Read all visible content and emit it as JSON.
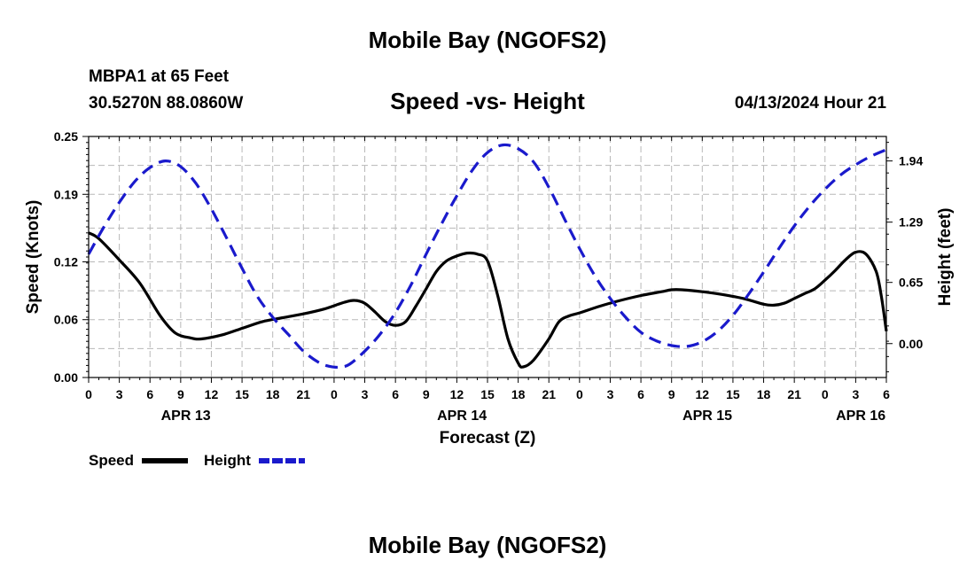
{
  "header": {
    "title": "Mobile Bay (NGOFS2)",
    "station": "MBPA1 at 65 Feet",
    "coords": "30.5270N  88.0860W",
    "subtitle": "Speed -vs- Height",
    "datetime": "04/13/2024 Hour 21"
  },
  "footer": {
    "title": "Mobile Bay (NGOFS2)"
  },
  "colors": {
    "speed": "#000000",
    "height": "#1a1acc",
    "grid": "#b8b8b8"
  },
  "chart_data": {
    "type": "line",
    "xlabel": "Forecast (Z)",
    "ylabel_left": "Speed (Knots)",
    "ylabel_right": "Height (feet)",
    "x_unit": "hours since 04/13 00Z",
    "xlim": [
      0,
      78
    ],
    "ylim_left": [
      0,
      0.25
    ],
    "ylim_right": [
      -0.36,
      2.2
    ],
    "y_ticks_left": [
      0.0,
      0.06,
      0.12,
      0.19,
      0.25
    ],
    "y_tick_labels_left": [
      "0.00",
      "0.06",
      "0.12",
      "0.19",
      "0.25"
    ],
    "y_ticks_right": [
      0.0,
      0.65,
      1.29,
      1.94
    ],
    "y_tick_labels_right": [
      "0.00",
      "0.65",
      "1.29",
      "1.94"
    ],
    "x_ticks": [
      0,
      3,
      6,
      9,
      12,
      15,
      18,
      21,
      24,
      27,
      30,
      33,
      36,
      39,
      42,
      45,
      48,
      51,
      54,
      57,
      60,
      63,
      66,
      69,
      72,
      75,
      78
    ],
    "x_tick_labels": [
      "0",
      "3",
      "6",
      "9",
      "12",
      "15",
      "18",
      "21",
      "0",
      "3",
      "6",
      "9",
      "12",
      "15",
      "18",
      "21",
      "0",
      "3",
      "6",
      "9",
      "12",
      "15",
      "18",
      "21",
      "0",
      "3",
      "6"
    ],
    "day_labels": [
      {
        "x": 9.5,
        "label": "APR 13"
      },
      {
        "x": 36.5,
        "label": "APR 14"
      },
      {
        "x": 60.5,
        "label": "APR 15"
      },
      {
        "x": 75.5,
        "label": "APR 16"
      }
    ],
    "grid": true,
    "legend": [
      {
        "name": "Speed",
        "style": "solid"
      },
      {
        "name": "Height",
        "style": "dashed"
      }
    ],
    "series": [
      {
        "name": "Speed",
        "axis": "left",
        "style": "solid",
        "points": [
          [
            0,
            0.15
          ],
          [
            1,
            0.144
          ],
          [
            3,
            0.122
          ],
          [
            5,
            0.098
          ],
          [
            7,
            0.064
          ],
          [
            8.5,
            0.046
          ],
          [
            10,
            0.041
          ],
          [
            11,
            0.04
          ],
          [
            13,
            0.044
          ],
          [
            15,
            0.051
          ],
          [
            17,
            0.058
          ],
          [
            19,
            0.062
          ],
          [
            21,
            0.066
          ],
          [
            23,
            0.071
          ],
          [
            25,
            0.078
          ],
          [
            26,
            0.08
          ],
          [
            27,
            0.077
          ],
          [
            28,
            0.068
          ],
          [
            29,
            0.058
          ],
          [
            30,
            0.054
          ],
          [
            31,
            0.058
          ],
          [
            32,
            0.074
          ],
          [
            33,
            0.092
          ],
          [
            34,
            0.11
          ],
          [
            35,
            0.121
          ],
          [
            36,
            0.126
          ],
          [
            37,
            0.129
          ],
          [
            38,
            0.128
          ],
          [
            39,
            0.121
          ],
          [
            40,
            0.085
          ],
          [
            41,
            0.04
          ],
          [
            42,
            0.015
          ],
          [
            42.5,
            0.011
          ],
          [
            43.5,
            0.018
          ],
          [
            45,
            0.04
          ],
          [
            46,
            0.058
          ],
          [
            47,
            0.064
          ],
          [
            48,
            0.067
          ],
          [
            50,
            0.074
          ],
          [
            52,
            0.08
          ],
          [
            54,
            0.085
          ],
          [
            56,
            0.089
          ],
          [
            57,
            0.091
          ],
          [
            58,
            0.091
          ],
          [
            60,
            0.089
          ],
          [
            62,
            0.086
          ],
          [
            64,
            0.082
          ],
          [
            66,
            0.076
          ],
          [
            67,
            0.075
          ],
          [
            68,
            0.077
          ],
          [
            69,
            0.082
          ],
          [
            70,
            0.087
          ],
          [
            71,
            0.092
          ],
          [
            72,
            0.101
          ],
          [
            73,
            0.111
          ],
          [
            74,
            0.122
          ],
          [
            75,
            0.13
          ],
          [
            76,
            0.128
          ],
          [
            77,
            0.11
          ],
          [
            77.5,
            0.085
          ],
          [
            78,
            0.048
          ]
        ]
      },
      {
        "name": "Height",
        "axis": "right",
        "style": "dashed",
        "points": [
          [
            0,
            0.95
          ],
          [
            1.5,
            1.24
          ],
          [
            3,
            1.5
          ],
          [
            4.5,
            1.72
          ],
          [
            6,
            1.87
          ],
          [
            7.5,
            1.94
          ],
          [
            9,
            1.88
          ],
          [
            10.5,
            1.7
          ],
          [
            12,
            1.43
          ],
          [
            13.5,
            1.12
          ],
          [
            15,
            0.8
          ],
          [
            16.5,
            0.5
          ],
          [
            18,
            0.28
          ],
          [
            19.5,
            0.1
          ],
          [
            21,
            -0.08
          ],
          [
            22.5,
            -0.2
          ],
          [
            23.5,
            -0.24
          ],
          [
            24.5,
            -0.25
          ],
          [
            25.5,
            -0.22
          ],
          [
            27,
            -0.08
          ],
          [
            28.5,
            0.1
          ],
          [
            30,
            0.33
          ],
          [
            31.5,
            0.62
          ],
          [
            33,
            0.95
          ],
          [
            34.5,
            1.27
          ],
          [
            36,
            1.57
          ],
          [
            37.5,
            1.84
          ],
          [
            39,
            2.03
          ],
          [
            40.5,
            2.11
          ],
          [
            42,
            2.07
          ],
          [
            43.5,
            1.93
          ],
          [
            45,
            1.66
          ],
          [
            46.5,
            1.33
          ],
          [
            48,
            1.01
          ],
          [
            49.5,
            0.72
          ],
          [
            51,
            0.48
          ],
          [
            52.5,
            0.28
          ],
          [
            54,
            0.12
          ],
          [
            55.5,
            0.03
          ],
          [
            57,
            -0.02
          ],
          [
            58.5,
            -0.03
          ],
          [
            60,
            0.02
          ],
          [
            61.5,
            0.13
          ],
          [
            63,
            0.3
          ],
          [
            64.5,
            0.52
          ],
          [
            66,
            0.76
          ],
          [
            67.5,
            1.01
          ],
          [
            69,
            1.25
          ],
          [
            70.5,
            1.46
          ],
          [
            72,
            1.64
          ],
          [
            73.5,
            1.79
          ],
          [
            75,
            1.9
          ],
          [
            76.5,
            1.99
          ],
          [
            78,
            2.06
          ]
        ]
      }
    ]
  }
}
